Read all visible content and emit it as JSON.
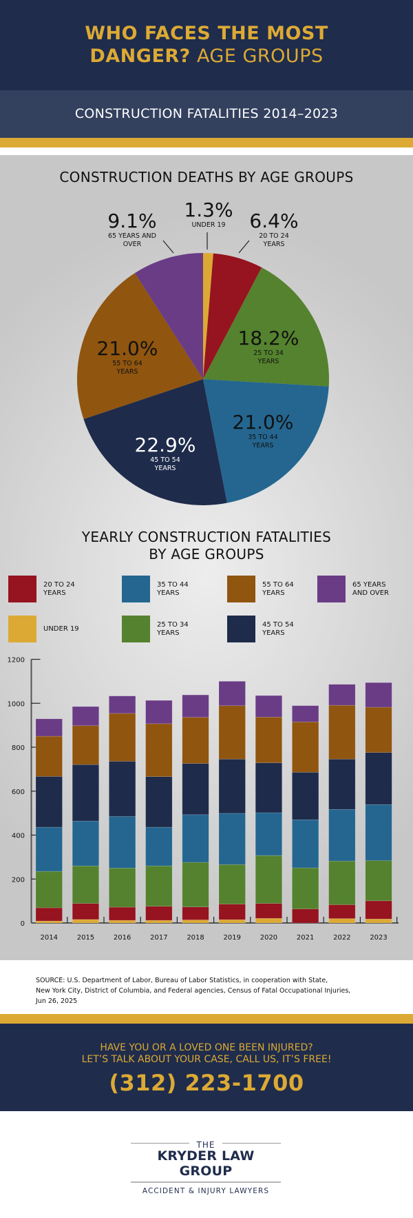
{
  "header": {
    "title_bold_line1": "WHO FACES THE MOST",
    "title_bold_line2": "DANGER?",
    "title_light_line2": "AGE GROUPS",
    "subtitle": "CONSTRUCTION FATALITIES  2014–2023"
  },
  "colors": {
    "navy": "#1f2c4c",
    "gold": "#dcaa34",
    "under_19": "#dcaa34",
    "age_20_24": "#95141f",
    "age_25_34": "#54822e",
    "age_35_44": "#246690",
    "age_45_54": "#1e2b4b",
    "age_55_64": "#90550f",
    "age_65_over": "#6a3c86"
  },
  "chart_data": [
    {
      "type": "pie",
      "title": "CONSTRUCTION DEATHS BY AGE GROUPS",
      "slices": [
        {
          "key": "under_19",
          "label": "UNDER 19",
          "value": 1.3,
          "display": "1.3%"
        },
        {
          "key": "age_20_24",
          "label": "20 TO 24\nYEARS",
          "value": 6.4,
          "display": "6.4%"
        },
        {
          "key": "age_25_34",
          "label": "25 TO 34\nYEARS",
          "value": 18.2,
          "display": "18.2%"
        },
        {
          "key": "age_35_44",
          "label": "35 TO 44\nYEARS",
          "value": 21.0,
          "display": "21.0%"
        },
        {
          "key": "age_45_54",
          "label": "45 TO 54\nYEARS",
          "value": 22.9,
          "display": "22.9%"
        },
        {
          "key": "age_55_64",
          "label": "55 TO 64\nYEARS",
          "value": 21.0,
          "display": "21.0%"
        },
        {
          "key": "age_65_over",
          "label": "65 YEARS AND\nOVER",
          "value": 9.1,
          "display": "9.1%"
        }
      ],
      "start": "top",
      "direction": "clockwise"
    },
    {
      "type": "bar",
      "stacked": true,
      "title": "YEARLY CONSTRUCTION FATALITIES\nBY AGE GROUPS",
      "title_line1": "YEARLY CONSTRUCTION FATALITIES",
      "title_line2": "BY AGE GROUPS",
      "xlabel": "",
      "ylabel": "",
      "ylim": [
        0,
        1200
      ],
      "yticks": [
        0,
        200,
        400,
        600,
        800,
        1000,
        1200
      ],
      "grid": false,
      "categories": [
        "2014",
        "2015",
        "2016",
        "2017",
        "2018",
        "2019",
        "2020",
        "2021",
        "2022",
        "2023"
      ],
      "series": [
        {
          "key": "under_19",
          "name": "UNDER 19",
          "values": [
            9,
            16,
            12,
            12,
            14,
            15,
            21,
            0,
            20,
            18
          ]
        },
        {
          "key": "age_20_24",
          "name": "20 TO 24\nYEARS",
          "values": [
            60,
            73,
            60,
            64,
            59,
            71,
            68,
            64,
            63,
            83
          ]
        },
        {
          "key": "age_25_34",
          "name": "25 TO 34\nYEARS",
          "values": [
            166,
            171,
            178,
            184,
            203,
            180,
            218,
            187,
            199,
            183
          ]
        },
        {
          "key": "age_35_44",
          "name": "35 TO 44\nYEARS",
          "values": [
            201,
            204,
            235,
            176,
            217,
            233,
            195,
            219,
            235,
            255
          ]
        },
        {
          "key": "age_45_54",
          "name": "45 TO 54\nYEARS",
          "values": [
            231,
            257,
            251,
            230,
            233,
            247,
            227,
            216,
            229,
            237
          ]
        },
        {
          "key": "age_55_64",
          "name": "55 TO 64\nYEARS",
          "values": [
            183,
            177,
            218,
            241,
            210,
            243,
            208,
            229,
            245,
            206
          ]
        },
        {
          "key": "age_65_over",
          "name": "65 YEARS\nAND OVER",
          "values": [
            79,
            87,
            79,
            106,
            102,
            111,
            98,
            74,
            95,
            112
          ]
        }
      ],
      "legend": {
        "placement": "top",
        "order": [
          "age_20_24",
          "age_35_44",
          "age_55_64",
          "age_65_over",
          "under_19",
          "age_25_34",
          "age_45_54"
        ]
      }
    }
  ],
  "source": {
    "line1": "SOURCE: U.S. Department of Labor, Bureau of Labor Statistics, in cooperation with State,",
    "line2": "New York City, District of Columbia, and Federal agencies, Census of Fatal Occupational Injuries,",
    "line3": "Jun 26, 2025"
  },
  "cta": {
    "line1": "HAVE YOU OR A LOVED ONE BEEN INJURED?",
    "line2": "LET’S TALK ABOUT YOUR CASE, CALL US, IT’S FREE!",
    "phone": "(312) 223-1700"
  },
  "logo": {
    "the": "THE",
    "name": "KRYDER LAW GROUP",
    "tagline": "ACCIDENT & INJURY LAWYERS"
  }
}
